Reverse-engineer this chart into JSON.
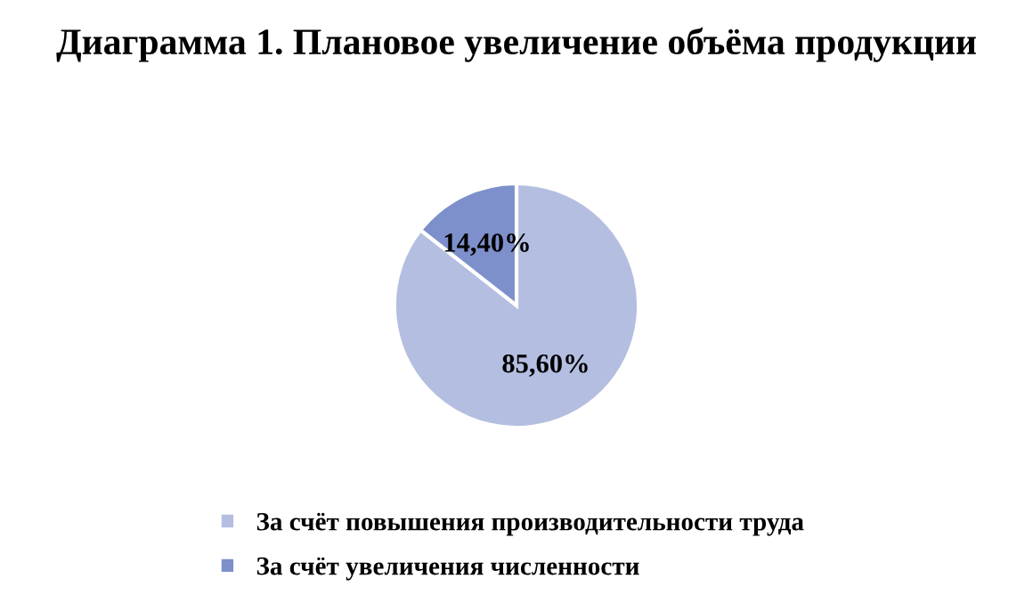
{
  "chart_data": {
    "type": "pie",
    "title": "Диаграмма 1. Плановое увеличение объёма продукции",
    "categories": [
      "За счёт повышения производительности труда",
      "За счёт увеличения численности"
    ],
    "values": [
      85.6,
      14.4
    ],
    "colors": [
      "#b4bee0",
      "#7d90cb"
    ],
    "value_labels": [
      "85,60%",
      "14,40%"
    ],
    "legend": "bottom"
  }
}
